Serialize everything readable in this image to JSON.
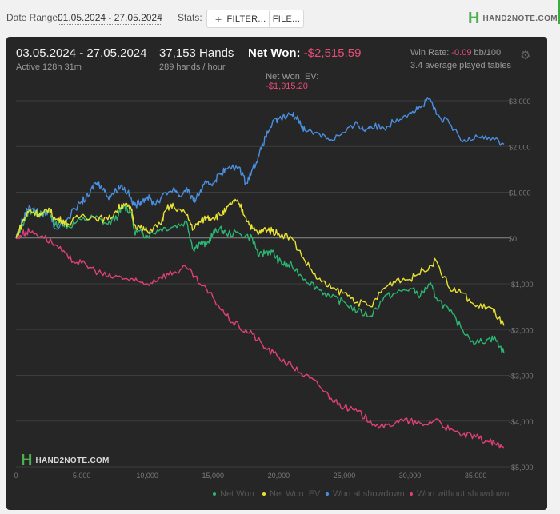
{
  "toolbar": {
    "date_range_label": "Date Range:",
    "date_range_value": "01.05.2024 - 27.05.2024",
    "stats_label": "Stats:",
    "filter_button": "FILTER...",
    "file_button": "FILE...",
    "logo_text": "HAND2NOTE.COM"
  },
  "summary": {
    "period": "03.05.2024 - 27.05.2024",
    "active": "Active 128h 31m",
    "hands": "37,153 Hands",
    "hands_per_hour": "289 hands / hour",
    "net_won_label": "Net Won:",
    "net_won_value": "-$2,515.59",
    "net_won_ev_label": "Net Won  EV:",
    "net_won_ev_value": "-$1,915.20",
    "win_rate_label": "Win Rate:",
    "win_rate_value": "-0.09",
    "win_rate_unit": "bb/100",
    "tables": "3.4 average played tables"
  },
  "watermark": "HAND2NOTE.COM",
  "chart_data": {
    "type": "line",
    "xlim": [
      0,
      37153
    ],
    "ylim": [
      -5000,
      3000
    ],
    "x_ticks": [
      0,
      5000,
      10000,
      15000,
      20000,
      25000,
      30000,
      35000
    ],
    "x_tick_labels": [
      "0",
      "5,000",
      "10,000",
      "15,000",
      "20,000",
      "25,000",
      "30,000",
      "35,000"
    ],
    "y_ticks": [
      3000,
      2000,
      1000,
      0,
      -1000,
      -2000,
      -3000,
      -4000,
      -5000
    ],
    "y_tick_labels": [
      "$3,000",
      "$2,000",
      "$1,000",
      "$0",
      "-$1,000",
      "-$2,000",
      "-$3,000",
      "-$4,000",
      "-$5,000"
    ],
    "grid": true,
    "legend_position": "bottom",
    "series": [
      {
        "name": "Net Won",
        "color": "#2bb673",
        "points": [
          [
            0,
            0
          ],
          [
            500,
            300
          ],
          [
            1000,
            600
          ],
          [
            1500,
            550
          ],
          [
            2000,
            500
          ],
          [
            2500,
            600
          ],
          [
            3000,
            300
          ],
          [
            3500,
            350
          ],
          [
            4000,
            250
          ],
          [
            5000,
            400
          ],
          [
            6000,
            450
          ],
          [
            7000,
            300
          ],
          [
            7800,
            500
          ],
          [
            8200,
            700
          ],
          [
            8800,
            550
          ],
          [
            9000,
            150
          ],
          [
            9600,
            100
          ],
          [
            10000,
            50
          ],
          [
            11000,
            200
          ],
          [
            12000,
            250
          ],
          [
            13000,
            350
          ],
          [
            13500,
            -250
          ],
          [
            14000,
            -100
          ],
          [
            14500,
            -150
          ],
          [
            15000,
            100
          ],
          [
            15500,
            200
          ],
          [
            16000,
            100
          ],
          [
            17000,
            100
          ],
          [
            18000,
            0
          ],
          [
            18500,
            -400
          ],
          [
            19000,
            -300
          ],
          [
            19500,
            -300
          ],
          [
            20000,
            -500
          ],
          [
            20500,
            -600
          ],
          [
            21000,
            -600
          ],
          [
            22000,
            -900
          ],
          [
            23000,
            -1100
          ],
          [
            24000,
            -1300
          ],
          [
            25000,
            -1400
          ],
          [
            26000,
            -1600
          ],
          [
            27000,
            -1700
          ],
          [
            28000,
            -1300
          ],
          [
            29000,
            -1200
          ],
          [
            30000,
            -1100
          ],
          [
            30800,
            -1250
          ],
          [
            31500,
            -1000
          ],
          [
            32000,
            -1300
          ],
          [
            33000,
            -1600
          ],
          [
            34000,
            -2000
          ],
          [
            35000,
            -2300
          ],
          [
            36000,
            -2200
          ],
          [
            36500,
            -2200
          ],
          [
            37153,
            -2520
          ]
        ]
      },
      {
        "name": "Net Won  EV",
        "color": "#e8e233",
        "points": [
          [
            0,
            0
          ],
          [
            500,
            350
          ],
          [
            1000,
            600
          ],
          [
            1500,
            550
          ],
          [
            2000,
            500
          ],
          [
            2500,
            650
          ],
          [
            3000,
            400
          ],
          [
            3500,
            400
          ],
          [
            4000,
            300
          ],
          [
            5000,
            500
          ],
          [
            6000,
            450
          ],
          [
            7000,
            400
          ],
          [
            7800,
            650
          ],
          [
            8200,
            750
          ],
          [
            8800,
            600
          ],
          [
            9000,
            300
          ],
          [
            9600,
            200
          ],
          [
            10000,
            150
          ],
          [
            11000,
            300
          ],
          [
            11500,
            650
          ],
          [
            12000,
            700
          ],
          [
            13000,
            500
          ],
          [
            13500,
            200
          ],
          [
            14000,
            350
          ],
          [
            14500,
            450
          ],
          [
            15000,
            450
          ],
          [
            15500,
            500
          ],
          [
            16000,
            600
          ],
          [
            16500,
            800
          ],
          [
            17000,
            750
          ],
          [
            17500,
            450
          ],
          [
            18000,
            200
          ],
          [
            18500,
            100
          ],
          [
            19000,
            200
          ],
          [
            19500,
            150
          ],
          [
            20000,
            100
          ],
          [
            21000,
            0
          ],
          [
            22000,
            -500
          ],
          [
            23000,
            -900
          ],
          [
            24000,
            -1100
          ],
          [
            25000,
            -1200
          ],
          [
            26000,
            -1400
          ],
          [
            27000,
            -1500
          ],
          [
            28000,
            -1100
          ],
          [
            29000,
            -900
          ],
          [
            30000,
            -900
          ],
          [
            31000,
            -700
          ],
          [
            32000,
            -500
          ],
          [
            33000,
            -1100
          ],
          [
            34000,
            -1200
          ],
          [
            35000,
            -1500
          ],
          [
            36000,
            -1500
          ],
          [
            36500,
            -1650
          ],
          [
            37153,
            -1915
          ]
        ]
      },
      {
        "name": "Won at showdown",
        "color": "#4a90e2",
        "points": [
          [
            0,
            0
          ],
          [
            500,
            400
          ],
          [
            1000,
            700
          ],
          [
            1500,
            600
          ],
          [
            2000,
            500
          ],
          [
            2500,
            600
          ],
          [
            3000,
            200
          ],
          [
            4000,
            450
          ],
          [
            5000,
            800
          ],
          [
            5500,
            900
          ],
          [
            6000,
            1200
          ],
          [
            6500,
            1150
          ],
          [
            7000,
            900
          ],
          [
            7500,
            1000
          ],
          [
            8000,
            1150
          ],
          [
            8500,
            1000
          ],
          [
            9000,
            700
          ],
          [
            9500,
            800
          ],
          [
            10000,
            900
          ],
          [
            10500,
            750
          ],
          [
            11000,
            850
          ],
          [
            12000,
            1100
          ],
          [
            12500,
            900
          ],
          [
            13000,
            1100
          ],
          [
            13500,
            800
          ],
          [
            14000,
            1000
          ],
          [
            14500,
            1200
          ],
          [
            15000,
            1200
          ],
          [
            15500,
            1400
          ],
          [
            16000,
            1500
          ],
          [
            17000,
            1550
          ],
          [
            17500,
            1200
          ],
          [
            18000,
            1500
          ],
          [
            18500,
            1800
          ],
          [
            19000,
            2200
          ],
          [
            19500,
            2500
          ],
          [
            20000,
            2600
          ],
          [
            21000,
            2700
          ],
          [
            21500,
            2600
          ],
          [
            22000,
            2350
          ],
          [
            23000,
            2300
          ],
          [
            24000,
            2150
          ],
          [
            25000,
            2300
          ],
          [
            26000,
            2500
          ],
          [
            26500,
            2350
          ],
          [
            27000,
            2450
          ],
          [
            28000,
            2400
          ],
          [
            29000,
            2600
          ],
          [
            30000,
            2750
          ],
          [
            30800,
            2850
          ],
          [
            31500,
            3050
          ],
          [
            32000,
            2700
          ],
          [
            33000,
            2500
          ],
          [
            34000,
            2100
          ],
          [
            35000,
            2250
          ],
          [
            36000,
            2200
          ],
          [
            37153,
            2050
          ]
        ]
      },
      {
        "name": "Won without showdown",
        "color": "#e0407a",
        "points": [
          [
            0,
            0
          ],
          [
            500,
            100
          ],
          [
            1000,
            150
          ],
          [
            2000,
            50
          ],
          [
            3000,
            -150
          ],
          [
            4000,
            -450
          ],
          [
            5000,
            -550
          ],
          [
            6000,
            -700
          ],
          [
            7000,
            -850
          ],
          [
            8000,
            -850
          ],
          [
            9000,
            -950
          ],
          [
            10000,
            -1000
          ],
          [
            11000,
            -850
          ],
          [
            12000,
            -750
          ],
          [
            13000,
            -650
          ],
          [
            14000,
            -1000
          ],
          [
            15000,
            -1300
          ],
          [
            16000,
            -1700
          ],
          [
            17000,
            -1950
          ],
          [
            18000,
            -2100
          ],
          [
            19000,
            -2400
          ],
          [
            20000,
            -2600
          ],
          [
            21000,
            -2800
          ],
          [
            22000,
            -3000
          ],
          [
            23000,
            -3200
          ],
          [
            24000,
            -3500
          ],
          [
            25000,
            -3700
          ],
          [
            26000,
            -3800
          ],
          [
            27000,
            -4000
          ],
          [
            28000,
            -4150
          ],
          [
            29000,
            -4000
          ],
          [
            30000,
            -4000
          ],
          [
            31000,
            -4100
          ],
          [
            32000,
            -3950
          ],
          [
            33000,
            -4200
          ],
          [
            34000,
            -4300
          ],
          [
            35000,
            -4350
          ],
          [
            36000,
            -4450
          ],
          [
            36500,
            -4500
          ],
          [
            37153,
            -4600
          ]
        ]
      }
    ]
  }
}
